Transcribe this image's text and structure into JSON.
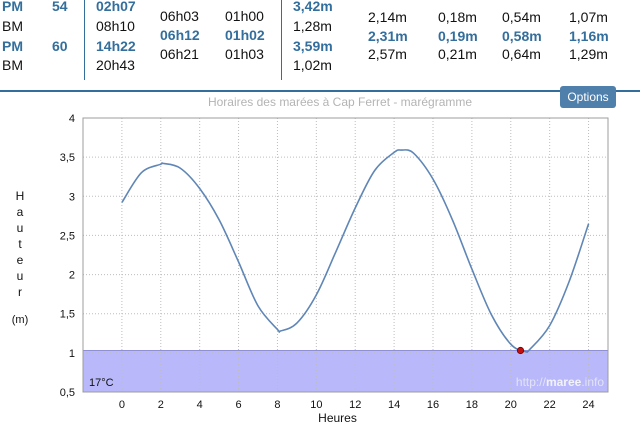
{
  "table": {
    "left": [
      {
        "type": "PM",
        "coef": "54",
        "time": "02h07"
      },
      {
        "type": "BM",
        "coef": "",
        "time": "08h10"
      },
      {
        "type": "PM",
        "coef": "60",
        "time": "14h22"
      },
      {
        "type": "BM",
        "coef": "",
        "time": "20h43"
      }
    ],
    "mid": [
      {
        "a": "06h03",
        "b": "01h00"
      },
      {
        "a": "06h12",
        "b": "01h02"
      },
      {
        "a": "06h21",
        "b": "01h03"
      }
    ],
    "heights": [
      "3,42m",
      "1,28m",
      "3,59m",
      "1,02m"
    ],
    "right": [
      [
        "2,14m",
        "0,18m",
        "0,54m",
        "1,07m"
      ],
      [
        "2,31m",
        "0,19m",
        "0,58m",
        "1,16m"
      ],
      [
        "2,57m",
        "0,21m",
        "0,64m",
        "1,29m"
      ]
    ]
  },
  "options_label": "Options",
  "chart_data": {
    "type": "line",
    "title": "Horaires des marées à Cap Ferret - marégramme",
    "xlabel": "Heures",
    "ylabel_letters": [
      "H",
      "a",
      "u",
      "t",
      "e",
      "u",
      "r"
    ],
    "ylabel_unit": "(m)",
    "xlim": [
      -2,
      25
    ],
    "ylim": [
      0.5,
      4
    ],
    "xticks": [
      0,
      2,
      4,
      6,
      8,
      10,
      12,
      14,
      16,
      18,
      20,
      22,
      24
    ],
    "yticks": [
      0.5,
      1,
      1.5,
      2,
      2.5,
      3,
      3.5,
      4
    ],
    "ytick_labels": [
      "0,5",
      "1",
      "1,5",
      "2",
      "2,5",
      "3",
      "3,5",
      "4"
    ],
    "grid": true,
    "series": [
      {
        "x": [
          0,
          1,
          2,
          2.12,
          3,
          4,
          5,
          6,
          7,
          8,
          8.17,
          9,
          10,
          11,
          12,
          13,
          14,
          14.37,
          15,
          16,
          17,
          18,
          19,
          20,
          20.72,
          21,
          22,
          23,
          24
        ],
        "y": [
          2.92,
          3.3,
          3.41,
          3.42,
          3.36,
          3.1,
          2.7,
          2.16,
          1.6,
          1.3,
          1.28,
          1.38,
          1.74,
          2.29,
          2.85,
          3.33,
          3.56,
          3.59,
          3.55,
          3.22,
          2.7,
          2.07,
          1.49,
          1.11,
          1.02,
          1.05,
          1.35,
          1.91,
          2.65
        ]
      }
    ],
    "current_point": {
      "x": 20.5,
      "y": 1.03
    },
    "threshold": 1.03,
    "temperature": "17°C",
    "watermark_prefix": "http://",
    "watermark_brand": "maree",
    "watermark_suffix": ".info"
  }
}
